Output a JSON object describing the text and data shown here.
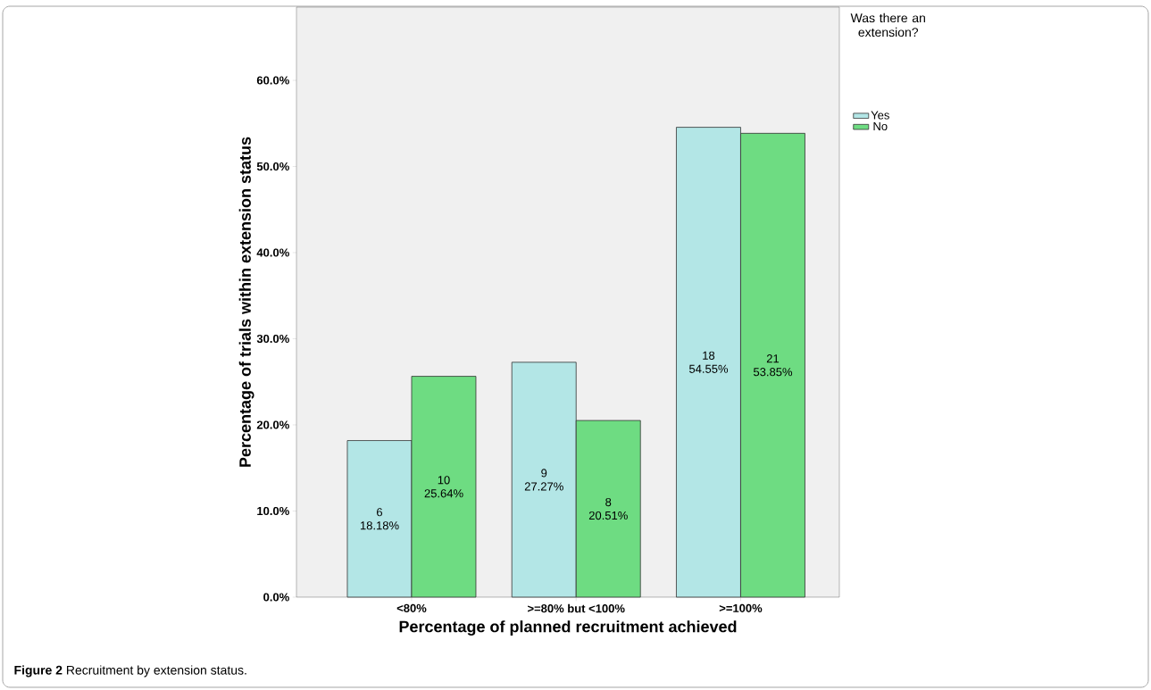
{
  "chart_data": {
    "type": "bar",
    "xlabel": "Percentage of planned recruitment achieved",
    "ylabel": "Percentage of trials within extension status",
    "legend_title": "Was there an extension?",
    "categories": [
      "<80%",
      ">=80% but <100%",
      ">=100%"
    ],
    "series": [
      {
        "name": "Yes",
        "color": "#b3e6e6",
        "values": [
          18.18,
          27.27,
          54.55
        ],
        "value_labels": [
          "6 18.18%",
          "9 27.27%",
          "18 54.55%"
        ]
      },
      {
        "name": "No",
        "color": "#6edc82",
        "values": [
          25.64,
          20.51,
          53.85
        ],
        "value_labels": [
          "10 25.64%",
          "8 20.51%",
          "21 53.85%"
        ]
      }
    ],
    "ylim": [
      0,
      68.5
    ],
    "yticks": [
      {
        "value": 0,
        "label": "0.0%"
      },
      {
        "value": 10,
        "label": "10.0%"
      },
      {
        "value": 20,
        "label": "20.0%"
      },
      {
        "value": 30,
        "label": "30.0%"
      },
      {
        "value": 40,
        "label": "40.0%"
      },
      {
        "value": 50,
        "label": "50.0%"
      },
      {
        "value": 60,
        "label": "60.0%"
      }
    ],
    "legend": "top right",
    "grid": false,
    "annotations": [
      "**Figure 2** Recruitment by extension status."
    ]
  }
}
